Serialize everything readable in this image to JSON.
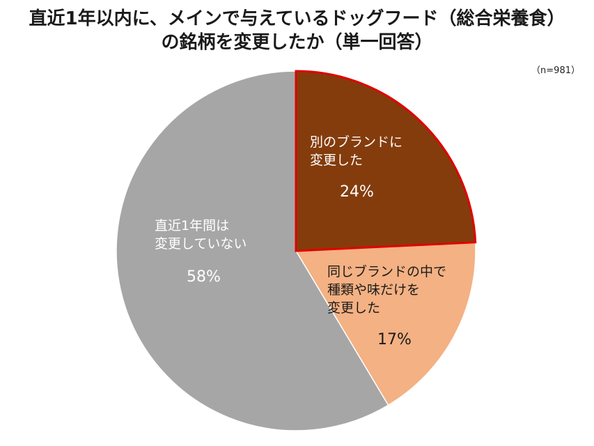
{
  "chart_data": {
    "type": "pie",
    "title_lines": [
      "直近1年以内に、メインで与えているドッグフード（総合栄養食）",
      "の銘柄を変更したか（単一回答）"
    ],
    "note": "（n=981）",
    "slices": [
      {
        "label_lines": [
          "別のブランドに",
          "変更した"
        ],
        "value": 24,
        "value_label": "24%",
        "color": "#843c0c",
        "text_color": "#ffffff"
      },
      {
        "label_lines": [
          "同じブランドの中で",
          "種類や味だけを",
          "変更した"
        ],
        "value": 17,
        "value_label": "17%",
        "color": "#f4b183",
        "text_color": "#1a1a1a"
      },
      {
        "label_lines": [
          "直近1年間は",
          "変更していない"
        ],
        "value": 58,
        "value_label": "58%",
        "color": "#a6a6a6",
        "text_color": "#ffffff"
      }
    ],
    "highlight": {
      "slice_index": 0,
      "outline_color": "#e00000"
    }
  }
}
